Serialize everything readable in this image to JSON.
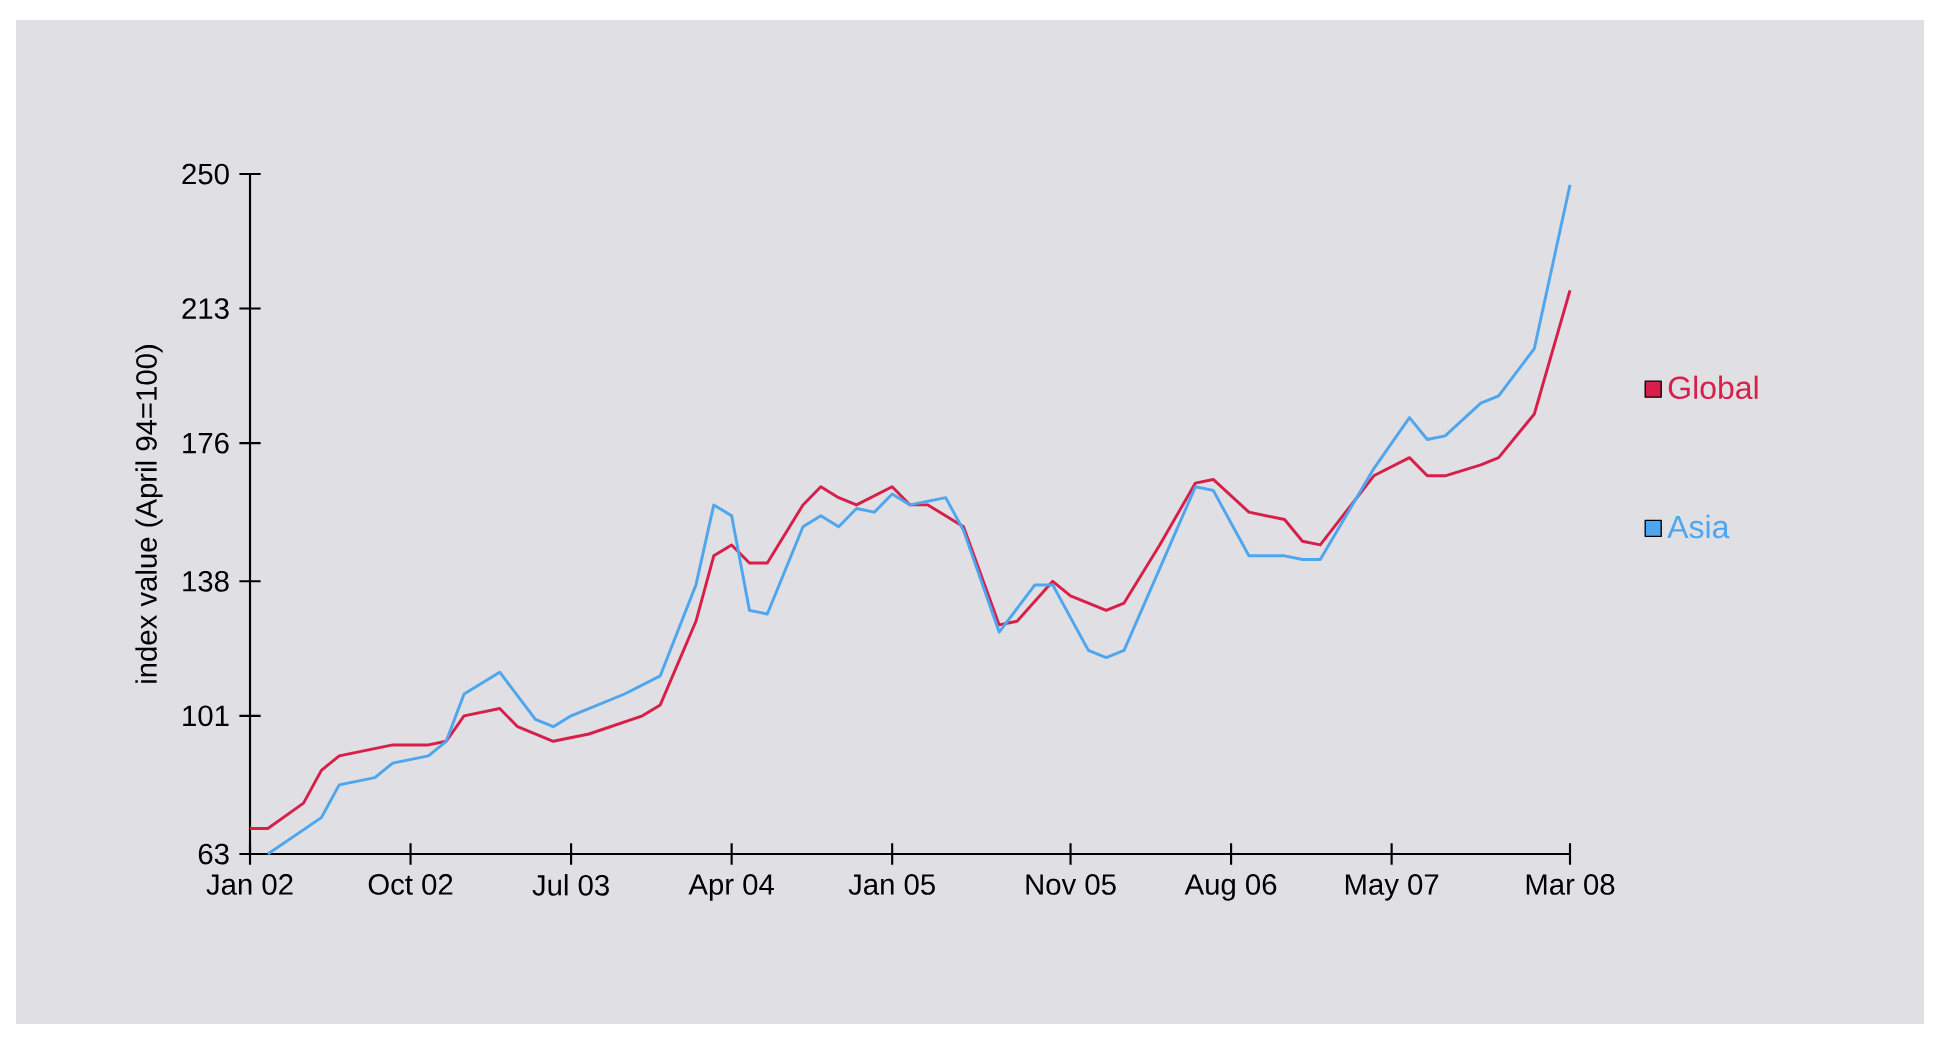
{
  "chart_data": {
    "type": "line",
    "ylabel": "index value (April 94=100)",
    "legend": "right",
    "xlim": [
      "2002-01",
      "2008-03"
    ],
    "ylim": [
      63,
      250
    ],
    "yticks": [
      63,
      101,
      138,
      176,
      213,
      250
    ],
    "xticks": [
      {
        "value": "2002-01",
        "label": "Jan 02"
      },
      {
        "value": "2002-10",
        "label": "Oct 02"
      },
      {
        "value": "2003-07",
        "label": "Jul 03"
      },
      {
        "value": "2004-04",
        "label": "Apr 04"
      },
      {
        "value": "2005-01",
        "label": "Jan 05"
      },
      {
        "value": "2005-11",
        "label": "Nov 05"
      },
      {
        "value": "2006-08",
        "label": "Aug 06"
      },
      {
        "value": "2007-05",
        "label": "May 07"
      },
      {
        "value": "2008-03",
        "label": "Mar 08"
      }
    ],
    "series": [
      {
        "name": "Global",
        "color": "#d6204a",
        "x": [
          "2002-01",
          "2002-02",
          "2002-04",
          "2002-05",
          "2002-06",
          "2002-09",
          "2002-11",
          "2002-12",
          "2003-01",
          "2003-03",
          "2003-04",
          "2003-06",
          "2003-08",
          "2003-11",
          "2003-12",
          "2004-02",
          "2004-03",
          "2004-04",
          "2004-05",
          "2004-06",
          "2004-08",
          "2004-09",
          "2004-10",
          "2004-11",
          "2005-01",
          "2005-02",
          "2005-03",
          "2005-05",
          "2005-07",
          "2005-08",
          "2005-10",
          "2005-11",
          "2006-01",
          "2006-02",
          "2006-04",
          "2006-06",
          "2006-07",
          "2006-09",
          "2006-11",
          "2006-12",
          "2007-01",
          "2007-04",
          "2007-06",
          "2007-07",
          "2007-08",
          "2007-10",
          "2007-11",
          "2008-01",
          "2008-03"
        ],
        "values": [
          70,
          70,
          77,
          86,
          90,
          93,
          93,
          94,
          101,
          103,
          98,
          94,
          96,
          101,
          104,
          127,
          145,
          148,
          143,
          143,
          159,
          164,
          161,
          159,
          164,
          159,
          159,
          153,
          126,
          127,
          138,
          134,
          130,
          132,
          148,
          165,
          166,
          157,
          155,
          149,
          148,
          167,
          172,
          167,
          167,
          170,
          172,
          184,
          218
        ]
      },
      {
        "name": "Asia",
        "color": "#4ea6ee",
        "x": [
          "2002-02",
          "2002-05",
          "2002-06",
          "2002-08",
          "2002-09",
          "2002-11",
          "2002-12",
          "2003-01",
          "2003-03",
          "2003-05",
          "2003-06",
          "2003-07",
          "2003-10",
          "2003-12",
          "2004-02",
          "2004-03",
          "2004-04",
          "2004-05",
          "2004-06",
          "2004-08",
          "2004-09",
          "2004-10",
          "2004-11",
          "2004-12",
          "2005-01",
          "2005-02",
          "2005-04",
          "2005-05",
          "2005-07",
          "2005-09",
          "2005-10",
          "2005-12",
          "2006-01",
          "2006-02",
          "2006-06",
          "2006-07",
          "2006-09",
          "2006-11",
          "2006-12",
          "2007-01",
          "2007-04",
          "2007-06",
          "2007-07",
          "2007-08",
          "2007-10",
          "2007-11",
          "2008-01",
          "2008-03"
        ],
        "values": [
          63,
          73,
          82,
          84,
          88,
          90,
          94,
          107,
          113,
          100,
          98,
          101,
          107,
          112,
          137,
          159,
          156,
          130,
          129,
          153,
          156,
          153,
          158,
          157,
          162,
          159,
          161,
          152,
          124,
          137,
          137,
          119,
          117,
          119,
          164,
          163,
          145,
          145,
          144,
          144,
          169,
          183,
          177,
          178,
          187,
          189,
          202,
          247
        ]
      }
    ]
  }
}
